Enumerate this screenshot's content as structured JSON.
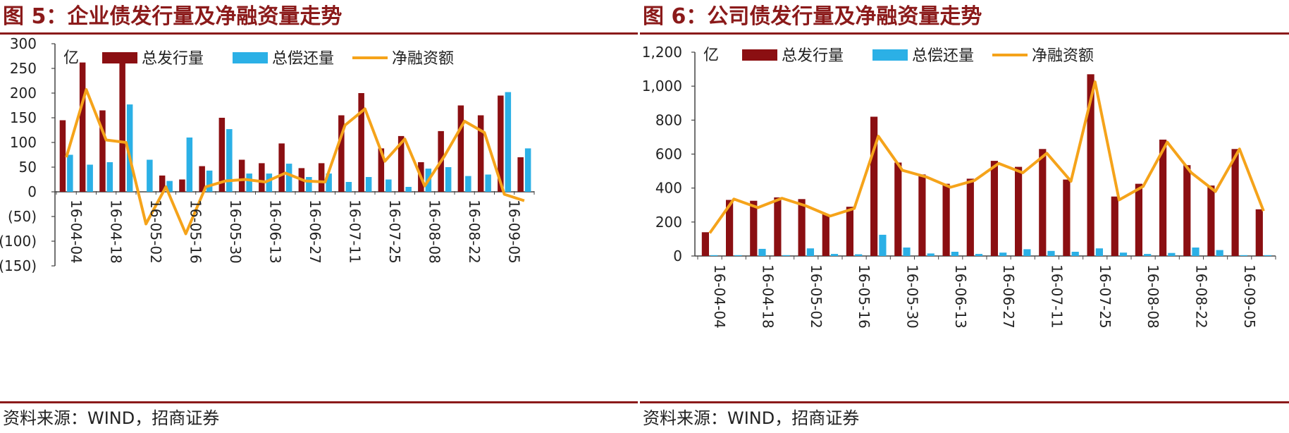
{
  "charts": [
    {
      "title": "图 5：企业债发行量及净融资量走势",
      "source": "资料来源：WIND，招商证券",
      "colors": {
        "issuance": "#8b0f12",
        "repayment": "#2bb0e6",
        "net": "#f5a31a"
      },
      "chart_data": {
        "type": "bar",
        "unit_label": "亿",
        "x_tick_labels": [
          "16-04-04",
          "16-04-18",
          "16-05-02",
          "16-05-16",
          "16-05-30",
          "16-06-13",
          "16-06-27",
          "16-07-11",
          "16-07-25",
          "16-08-08",
          "16-08-22",
          "16-09-05"
        ],
        "ylim": [
          -150,
          300
        ],
        "yticks": [
          300,
          250,
          200,
          150,
          100,
          50,
          0,
          -50,
          -100,
          -150
        ],
        "ytick_labels": [
          "300",
          "250",
          "200",
          "150",
          "100",
          "50",
          "0",
          "(50)",
          "(100)",
          "(150)"
        ],
        "legend_position": "top",
        "series": [
          {
            "name": "总发行量",
            "type": "bar",
            "values": [
              145,
              262,
              165,
              265,
              0,
              33,
              25,
              52,
              150,
              65,
              58,
              98,
              48,
              58,
              155,
              200,
              88,
              113,
              60,
              123,
              175,
              155,
              195,
              70
            ]
          },
          {
            "name": "总偿还量",
            "type": "bar",
            "values": [
              75,
              55,
              60,
              177,
              65,
              22,
              110,
              43,
              127,
              37,
              37,
              57,
              30,
              37,
              20,
              30,
              25,
              10,
              47,
              50,
              32,
              35,
              202,
              88
            ]
          },
          {
            "name": "净融资额",
            "type": "line",
            "values": [
              70,
              207,
              105,
              100,
              -65,
              10,
              -85,
              10,
              22,
              25,
              20,
              38,
              22,
              20,
              135,
              168,
              62,
              107,
              12,
              73,
              143,
              120,
              -5,
              -18
            ]
          }
        ]
      }
    },
    {
      "title": "图 6：公司债发行量及净融资量走势",
      "source": "资料来源：WIND，招商证券",
      "colors": {
        "issuance": "#8b0f12",
        "repayment": "#2bb0e6",
        "net": "#f5a31a"
      },
      "chart_data": {
        "type": "bar",
        "unit_label": "亿",
        "x_tick_labels": [
          "16-04-04",
          "16-04-18",
          "16-05-02",
          "16-05-16",
          "16-05-30",
          "16-06-13",
          "16-06-27",
          "16-07-11",
          "16-07-25",
          "16-08-08",
          "16-08-22",
          "16-09-05"
        ],
        "ylim": [
          0,
          1200
        ],
        "yticks": [
          1200,
          1000,
          800,
          600,
          400,
          200,
          0
        ],
        "ytick_labels": [
          "1,200",
          "1,000",
          "800",
          "600",
          "400",
          "200",
          "0"
        ],
        "legend_position": "top",
        "series": [
          {
            "name": "总发行量",
            "type": "bar",
            "values": [
              140,
              330,
              325,
              345,
              335,
              245,
              290,
              820,
              550,
              480,
              425,
              455,
              560,
              525,
              630,
              450,
              1070,
              350,
              425,
              685,
              535,
              415,
              630,
              275
            ]
          },
          {
            "name": "总偿还量",
            "type": "bar",
            "values": [
              5,
              5,
              42,
              5,
              45,
              12,
              10,
              125,
              50,
              15,
              25,
              12,
              20,
              40,
              30,
              25,
              45,
              20,
              12,
              18,
              50,
              35,
              5,
              5
            ]
          },
          {
            "name": "净融资额",
            "type": "line",
            "values": [
              135,
              335,
              285,
              340,
              295,
              235,
              280,
              705,
              505,
              465,
              405,
              445,
              545,
              490,
              605,
              440,
              1025,
              330,
              410,
              670,
              490,
              380,
              630,
              265
            ]
          }
        ]
      }
    }
  ]
}
